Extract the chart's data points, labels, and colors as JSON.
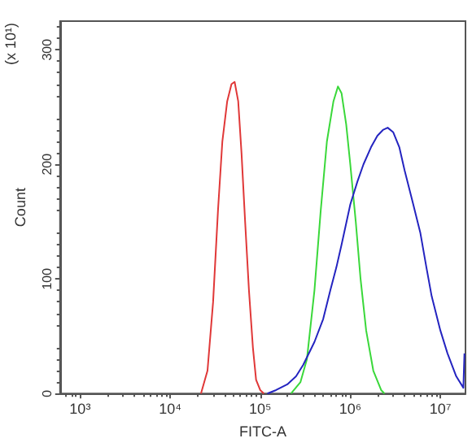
{
  "chart_data": {
    "type": "line",
    "xlabel": "FITC-A",
    "ylabel": "Count",
    "annotations": [
      "(x 10¹)"
    ],
    "log": "x",
    "grid": false,
    "marker": "none",
    "line_style": "solid",
    "xlim": [
      600,
      19000000
    ],
    "xticks": [
      {
        "value": 1000,
        "label": "10³"
      },
      {
        "value": 10000,
        "label": "10⁴"
      },
      {
        "value": 100000,
        "label": "10⁵"
      },
      {
        "value": 1000000,
        "label": "10⁶"
      },
      {
        "value": 10000000,
        "label": "10⁷"
      }
    ],
    "ylim": [
      0,
      325
    ],
    "yticks": [
      0,
      100,
      200,
      300
    ],
    "series": [
      {
        "color": "#e03838",
        "x": [
          22000,
          26000,
          30000,
          34000,
          38000,
          43000,
          48000,
          52000,
          57000,
          62000,
          68000,
          75000,
          83000,
          90000,
          100000,
          110000
        ],
        "values": [
          0,
          20,
          80,
          160,
          220,
          255,
          270,
          272,
          255,
          210,
          150,
          90,
          40,
          12,
          3,
          0
        ]
      },
      {
        "color": "#3ad83a",
        "x": [
          220000,
          280000,
          330000,
          400000,
          470000,
          550000,
          650000,
          730000,
          800000,
          900000,
          1000000,
          1150000,
          1300000,
          1500000,
          1800000,
          2200000,
          2400000
        ],
        "values": [
          0,
          10,
          30,
          90,
          160,
          220,
          255,
          268,
          262,
          235,
          200,
          150,
          100,
          55,
          20,
          3,
          0
        ]
      },
      {
        "color": "#2424c0",
        "x": [
          120000,
          150000,
          200000,
          250000,
          300000,
          400000,
          500000,
          600000,
          700000,
          800000,
          1000000,
          1200000,
          1400000,
          1700000,
          2000000,
          2300000,
          2600000,
          3000000,
          3500000,
          4000000,
          5000000,
          6000000,
          7000000,
          8000000,
          10000000,
          12000000,
          15000000,
          18000000,
          18500000
        ],
        "values": [
          0,
          3,
          8,
          15,
          25,
          45,
          65,
          90,
          110,
          130,
          165,
          185,
          200,
          215,
          225,
          230,
          232,
          228,
          215,
          195,
          165,
          140,
          110,
          85,
          55,
          35,
          15,
          5,
          35
        ]
      }
    ]
  }
}
